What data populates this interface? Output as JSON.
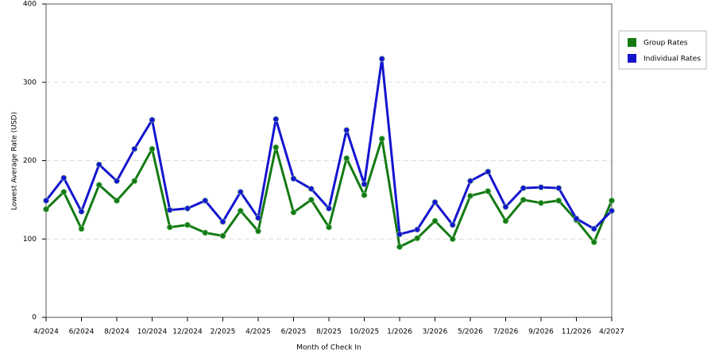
{
  "chart_data": {
    "type": "line",
    "x_label": "Month of Check In",
    "y_label": "Lowest Average Rate (USD)",
    "categories": [
      "4/2024",
      null,
      "6/2024",
      null,
      "8/2024",
      null,
      "10/2024",
      null,
      "12/2024",
      null,
      "2/2025",
      null,
      "4/2025",
      null,
      "6/2025",
      null,
      "8/2025",
      null,
      "10/2025",
      null,
      "1/2026",
      null,
      "3/2026",
      null,
      "5/2026",
      null,
      "7/2026",
      null,
      "9/2026",
      null,
      "11/2026",
      null,
      "4/2027"
    ],
    "series": [
      {
        "name": "Group Rates",
        "color": "#137a13",
        "values": [
          138,
          160,
          113,
          169,
          149,
          174,
          215,
          115,
          118,
          108,
          104,
          136,
          110,
          217,
          134,
          150,
          115,
          203,
          156,
          228,
          90,
          101,
          123,
          100,
          155,
          161,
          123,
          150,
          146,
          149,
          124,
          96,
          149
        ]
      },
      {
        "name": "Individual Rates",
        "color": "#1515d0",
        "values": [
          149,
          178,
          135,
          195,
          174,
          215,
          252,
          137,
          139,
          149,
          122,
          160,
          127,
          253,
          177,
          164,
          139,
          239,
          170,
          330,
          106,
          112,
          147,
          118,
          174,
          186,
          141,
          165,
          166,
          165,
          126,
          113,
          136
        ]
      }
    ],
    "ylim": [
      0,
      400
    ],
    "yticks": [
      0,
      100,
      200,
      300,
      400
    ],
    "grid": true,
    "legend": "right"
  }
}
